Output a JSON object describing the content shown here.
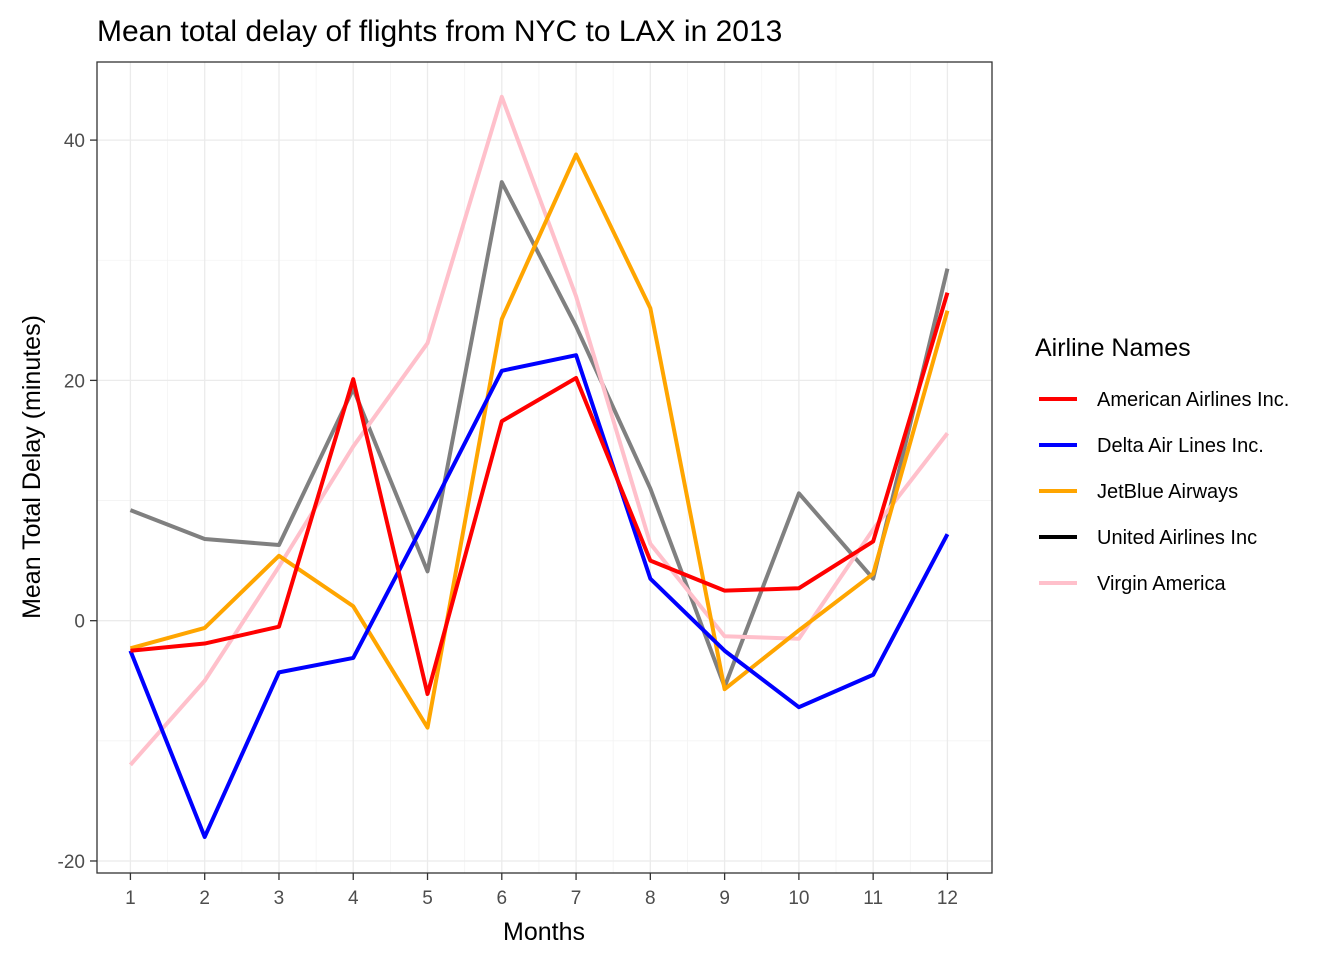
{
  "chart_data": {
    "type": "line",
    "title": "Mean total delay of flights from NYC to LAX in 2013",
    "xlabel": "Months",
    "ylabel": "Mean Total Delay (minutes)",
    "x": [
      1,
      2,
      3,
      4,
      5,
      6,
      7,
      8,
      9,
      10,
      11,
      12
    ],
    "x_tick_labels": [
      "1",
      "2",
      "3",
      "4",
      "5",
      "6",
      "7",
      "8",
      "9",
      "10",
      "11",
      "12"
    ],
    "y_ticks": [
      -20,
      0,
      20,
      40
    ],
    "y_tick_labels": [
      "-20",
      "0",
      "20",
      "40"
    ],
    "xlim": [
      0.55,
      12.6
    ],
    "ylim": [
      -21,
      46.5
    ],
    "grid": true,
    "legend": {
      "title": "Airline Names",
      "placement": "right"
    },
    "series": [
      {
        "name": "United Airlines Inc",
        "legend_color": "#000000",
        "color": "#808080",
        "values": [
          9.2,
          6.8,
          6.3,
          19.3,
          4.1,
          36.5,
          24.5,
          11.0,
          -5.5,
          10.6,
          3.5,
          29.3
        ]
      },
      {
        "name": "Virgin America",
        "color": "#FFC0CB",
        "values": [
          -12.0,
          -5.0,
          4.5,
          14.5,
          23.1,
          43.6,
          27.0,
          6.4,
          -1.3,
          -1.5,
          7.6,
          15.6
        ]
      },
      {
        "name": "JetBlue Airways",
        "color": "#FFA500",
        "values": [
          -2.3,
          -0.6,
          5.4,
          1.2,
          -8.9,
          25.1,
          38.8,
          26.0,
          -5.7,
          -0.8,
          3.9,
          25.8
        ]
      },
      {
        "name": "Delta Air Lines Inc.",
        "color": "#0000FF",
        "values": [
          -2.5,
          -18.0,
          -4.3,
          -3.1,
          8.7,
          20.8,
          22.1,
          3.5,
          -2.5,
          -7.2,
          -4.5,
          7.2
        ]
      },
      {
        "name": "American Airlines Inc.",
        "color": "#FF0000",
        "values": [
          -2.5,
          -1.9,
          -0.5,
          20.1,
          -6.1,
          16.6,
          20.2,
          5.0,
          2.5,
          2.7,
          6.6,
          27.3
        ]
      }
    ],
    "legend_order": [
      "American Airlines Inc.",
      "Delta Air Lines Inc.",
      "JetBlue Airways",
      "United Airlines Inc",
      "Virgin America"
    ]
  }
}
